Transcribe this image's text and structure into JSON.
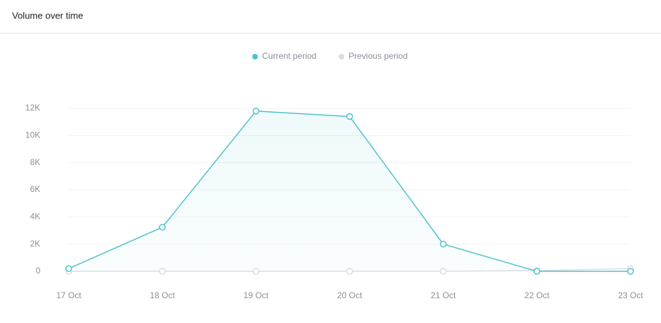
{
  "header": {
    "title": "Volume over time"
  },
  "chart_data": {
    "type": "line",
    "categories": [
      "17 Oct",
      "18 Oct",
      "19 Oct",
      "20 Oct",
      "21 Oct",
      "22 Oct",
      "23 Oct"
    ],
    "series": [
      {
        "name": "Current period",
        "color": "#4fc3cc",
        "values": [
          200,
          3250,
          11800,
          11400,
          2000,
          0,
          0
        ]
      },
      {
        "name": "Previous period",
        "color": "#dcdde3",
        "values": [
          0,
          0,
          0,
          0,
          0,
          50,
          200
        ]
      }
    ],
    "ylim": [
      0,
      12000
    ],
    "yticks": [
      0,
      {
        "value": 2000,
        "label": "2K"
      },
      {
        "value": 4000,
        "label": "4K"
      },
      {
        "value": 6000,
        "label": "6K"
      },
      {
        "value": 8000,
        "label": "8K"
      },
      {
        "value": 10000,
        "label": "10K"
      },
      {
        "value": 12000,
        "label": "12K"
      }
    ],
    "grid": true,
    "legend": "top"
  }
}
